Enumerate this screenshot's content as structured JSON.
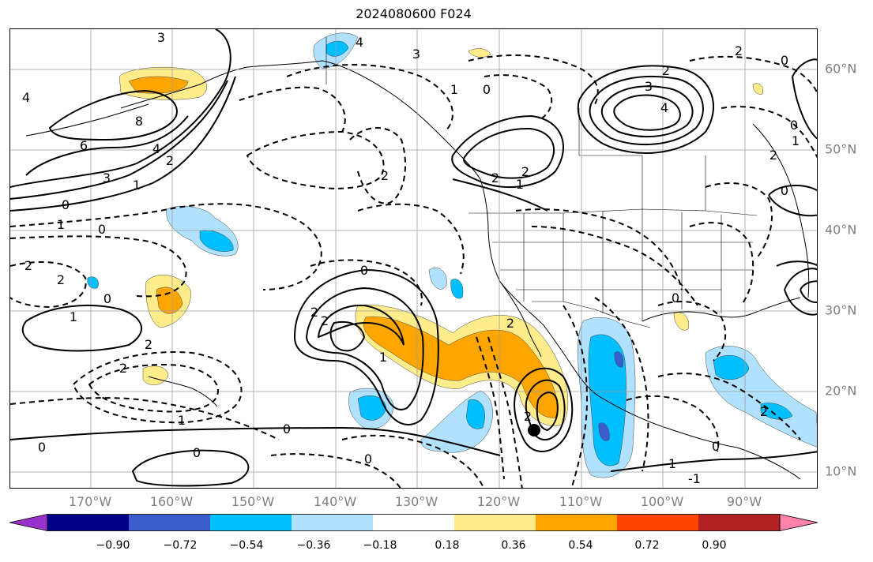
{
  "title": "2024080600 F024",
  "lon_labels": [
    "170°W",
    "160°W",
    "150°W",
    "140°W",
    "130°W",
    "120°W",
    "110°W",
    "100°W",
    "90°W"
  ],
  "lat_labels": [
    "60°N",
    "50°N",
    "40°N",
    "30°N",
    "20°N",
    "10°N"
  ],
  "contour_labels": [
    "4",
    "8",
    "6",
    "4",
    "2",
    "3",
    "1",
    "0",
    "1",
    "0",
    "2",
    "2",
    "0",
    "1",
    "2",
    "2",
    "0",
    "2",
    "2",
    "2",
    "1",
    "0",
    "0",
    "0",
    "1",
    "2",
    "3",
    "1",
    "1",
    "0",
    "2",
    "2",
    "2",
    "3",
    "4",
    "2",
    "0",
    "2",
    "0",
    "2",
    "0",
    "0",
    "2",
    "1",
    "0",
    "1",
    "4",
    "0",
    "3",
    "-1"
  ],
  "colorbar": {
    "ticks": [
      "−0.90",
      "−0.72",
      "−0.54",
      "−0.36",
      "−0.18",
      "0.18",
      "0.36",
      "0.54",
      "0.72",
      "0.90"
    ],
    "colors": [
      "#9932cc",
      "#00008b",
      "#3a5fcd",
      "#00bfff",
      "#b0e2ff",
      "#ffffff",
      "#ffec8b",
      "#ffa500",
      "#ff4500",
      "#b22222",
      "#ff82ab"
    ]
  },
  "marker": "storm-center"
}
